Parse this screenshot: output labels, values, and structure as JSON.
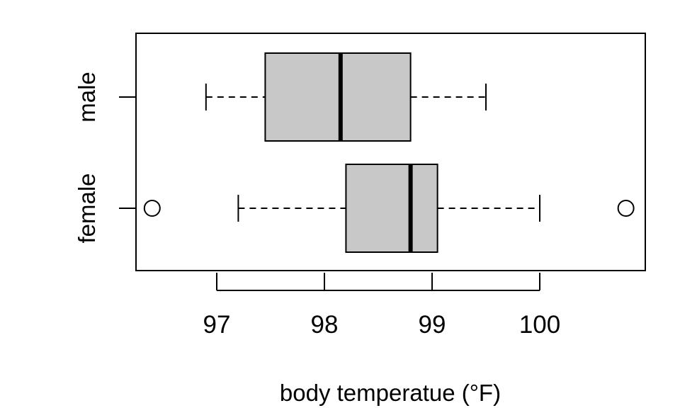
{
  "chart_data": {
    "type": "boxplot",
    "orientation": "horizontal",
    "xlabel": "body temperatue (°F)",
    "ylabel": "",
    "title": "",
    "xlim": [
      96.25,
      100.98
    ],
    "xticks": [
      97,
      98,
      99,
      100
    ],
    "xtick_labels": [
      "97",
      "98",
      "99",
      "100"
    ],
    "grid": false,
    "colors": {
      "box_fill": "#c8c8c8",
      "stroke": "#000000",
      "background": "#ffffff"
    },
    "series": [
      {
        "name": "male",
        "whisker_low": 96.9,
        "q1": 97.45,
        "median": 98.15,
        "q3": 98.8,
        "whisker_high": 99.5,
        "outliers": []
      },
      {
        "name": "female",
        "whisker_low": 97.2,
        "q1": 98.2,
        "median": 98.8,
        "q3": 99.05,
        "whisker_high": 100.0,
        "outliers": [
          96.4,
          100.8
        ]
      }
    ]
  }
}
